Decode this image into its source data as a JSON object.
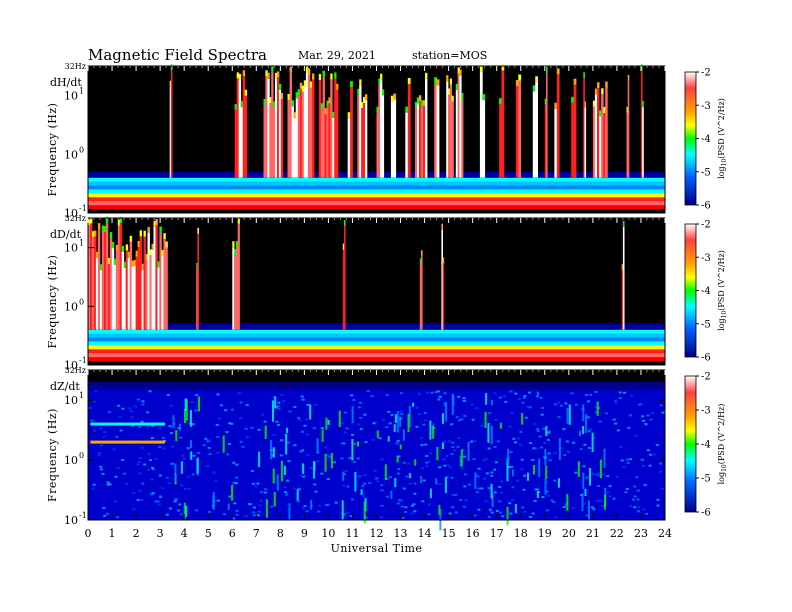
{
  "header": {
    "title": "Magnetic  Field  Spectra",
    "date": "Mar. 29, 2021",
    "station": "station=MOS"
  },
  "colors": {
    "background_panel": "#000000",
    "low_power": "#00008b",
    "high_power": "#ffffff"
  },
  "chart_data": {
    "type": "heatmap",
    "title": "Magnetic  Field  Spectra",
    "xlabel": "Universal Time",
    "x_ticks": [
      "0",
      "1",
      "2",
      "3",
      "4",
      "5",
      "6",
      "7",
      "8",
      "9",
      "10",
      "11",
      "12",
      "13",
      "14",
      "15",
      "16",
      "17",
      "18",
      "19",
      "20",
      "21",
      "22",
      "23",
      "24"
    ],
    "xlim": [
      0,
      24
    ],
    "y_scale": "log",
    "ylim_hz": [
      0.1,
      32
    ],
    "y_tick_labels": {
      "top": "32Hz",
      "t1": "10",
      "t1_exp": "1",
      "t0": "10",
      "t0_exp": "0",
      "tm1": "10",
      "tm1_exp": "-1"
    },
    "ylabel": "Frequency  (Hz)",
    "colorbar": {
      "ticks": [
        "-2",
        "-3",
        "-4",
        "-5",
        "-6"
      ],
      "range": [
        -6,
        -2
      ],
      "label_main": "log",
      "label_sub": "10",
      "label_rest": "(PSD (V^2/Hz)",
      "colors": [
        "#ffffff",
        "#ff3333",
        "#ffa500",
        "#ffff00",
        "#00ff00",
        "#00ffff",
        "#0066ff",
        "#0000cd",
        "#00008b"
      ]
    },
    "panels": [
      {
        "name": "dH/dt",
        "active_hours": [
          [
            3.4,
            3.5
          ],
          [
            6.1,
            6.6
          ],
          [
            7.3,
            8.1
          ],
          [
            8.3,
            9.4
          ],
          [
            9.6,
            10.4
          ],
          [
            10.8,
            11.0
          ],
          [
            11.2,
            11.6
          ],
          [
            12.0,
            12.3
          ],
          [
            12.6,
            12.8
          ],
          [
            13.2,
            13.4
          ],
          [
            13.6,
            14.1
          ],
          [
            14.4,
            14.6
          ],
          [
            14.9,
            15.2
          ],
          [
            15.3,
            15.6
          ],
          [
            16.3,
            16.5
          ],
          [
            17.1,
            17.3
          ],
          [
            17.8,
            18.0
          ],
          [
            18.5,
            18.7
          ],
          [
            19.0,
            19.1
          ],
          [
            19.4,
            19.6
          ],
          [
            20.1,
            20.3
          ],
          [
            20.6,
            20.7
          ],
          [
            21.0,
            21.6
          ],
          [
            22.4,
            22.5
          ],
          [
            23.0,
            23.1
          ]
        ],
        "low_freq_bands": [
          0.15,
          0.2,
          0.25,
          0.3
        ]
      },
      {
        "name": "dD/dt",
        "active_hours": [
          [
            0.0,
            3.3
          ],
          [
            4.5,
            4.6
          ],
          [
            6.0,
            6.3
          ],
          [
            10.6,
            10.7
          ],
          [
            13.8,
            13.9
          ],
          [
            14.7,
            14.8
          ],
          [
            22.2,
            22.3
          ]
        ],
        "low_freq_bands": [
          0.15,
          0.2,
          0.25,
          0.3
        ]
      },
      {
        "name": "dZ/dt",
        "active_hours": [
          [
            3.5,
            6.3
          ],
          [
            7.0,
            21.5
          ]
        ],
        "low_freq_bands": [
          2,
          4
        ]
      }
    ]
  }
}
